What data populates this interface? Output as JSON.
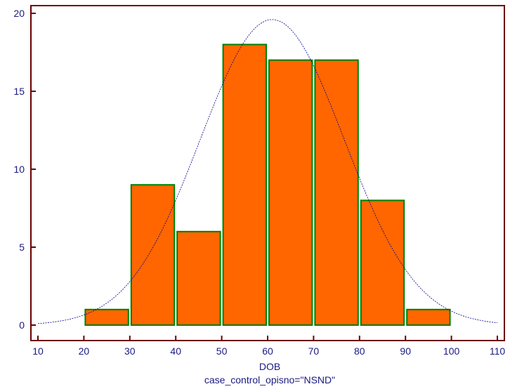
{
  "chart_data": {
    "type": "bar",
    "xlabel": "DOB",
    "subtitle": "case_control_opisno=\"NSND\"",
    "xlim": [
      10,
      110
    ],
    "ylim": [
      0,
      20
    ],
    "xticks": [
      10,
      20,
      30,
      40,
      50,
      60,
      70,
      80,
      90,
      100,
      110
    ],
    "yticks": [
      0,
      5,
      10,
      15,
      20
    ],
    "bins": [
      {
        "from": 10,
        "to": 20,
        "value": 0
      },
      {
        "from": 20,
        "to": 30,
        "value": 1
      },
      {
        "from": 30,
        "to": 40,
        "value": 9
      },
      {
        "from": 40,
        "to": 50,
        "value": 6
      },
      {
        "from": 50,
        "to": 60,
        "value": 18
      },
      {
        "from": 60,
        "to": 70,
        "value": 17
      },
      {
        "from": 70,
        "to": 80,
        "value": 17
      },
      {
        "from": 80,
        "to": 90,
        "value": 8
      },
      {
        "from": 90,
        "to": 100,
        "value": 1
      },
      {
        "from": 100,
        "to": 110,
        "value": 0
      }
    ],
    "normal_curve": {
      "mean": 61,
      "sd": 15.7,
      "peak": 19.6
    },
    "grid": false,
    "colors": {
      "bar_fill": "#ff6600",
      "bar_stroke": "#008000",
      "axis": "#6b0000",
      "curve": "#00008b",
      "text": "#1a1a80"
    }
  }
}
